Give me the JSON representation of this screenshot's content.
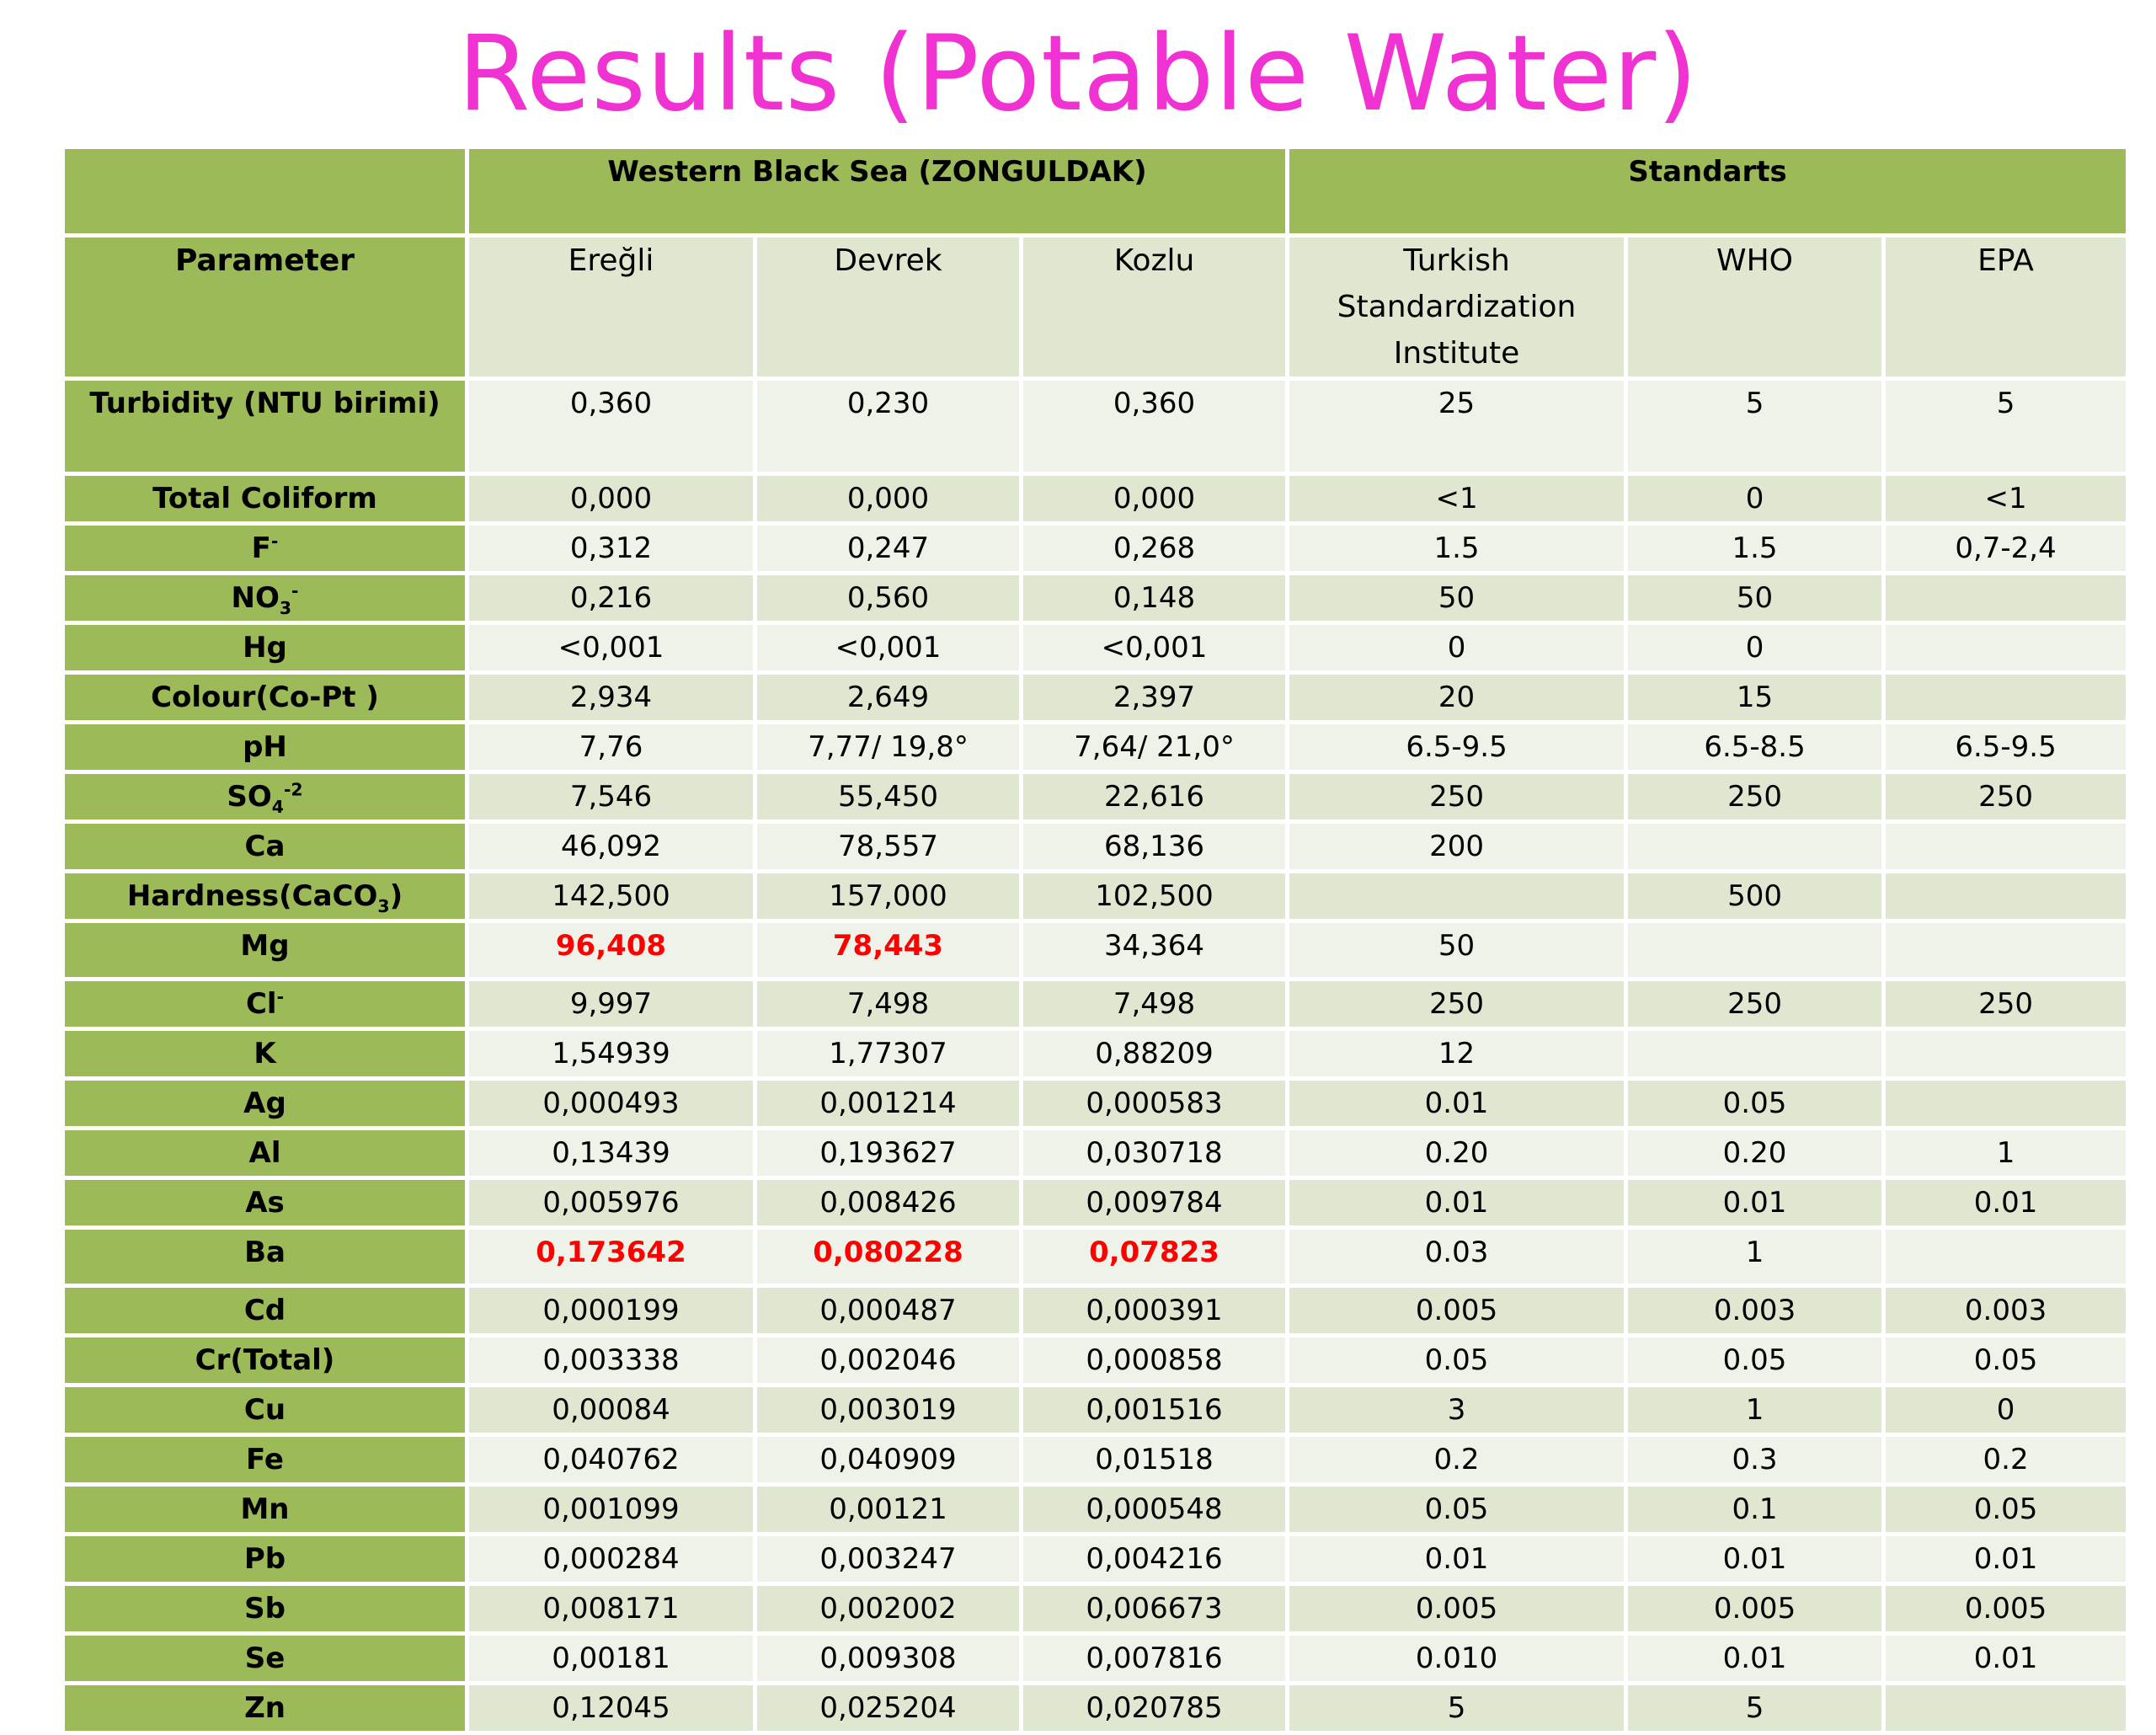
{
  "title": "Results (Potable Water)",
  "group_headers": {
    "blank": "",
    "region": "Western Black Sea (ZONGULDAK)",
    "standards": "Standarts"
  },
  "columns": {
    "parameter": "Parameter",
    "eregli": "Ereğli",
    "devrek": "Devrek",
    "kozlu": "Kozlu",
    "turkish": "Turkish Standardization Institute",
    "who": "WHO",
    "epa": "EPA"
  },
  "rows": [
    {
      "p": "Turbidity (NTU birimi)",
      "e": "0,360",
      "d": "0,230",
      "k": "0,360",
      "t": "25",
      "w": "5",
      "a": "5"
    },
    {
      "p": "Total Coliform",
      "e": "0,000",
      "d": "0,000",
      "k": "0,000",
      "t": "<1",
      "w": "0",
      "a": "<1"
    },
    {
      "p": "F",
      "sup": "-",
      "e": "0,312",
      "d": "0,247",
      "k": "0,268",
      "t": "1.5",
      "w": "1.5",
      "a": "0,7-2,4"
    },
    {
      "p": "NO",
      "sub": "3",
      "sup": "-",
      "e": "0,216",
      "d": "0,560",
      "k": "0,148",
      "t": "50",
      "w": "50",
      "a": ""
    },
    {
      "p": "Hg",
      "e": "<0,001",
      "d": "<0,001",
      "k": "<0,001",
      "t": "0",
      "w": "0",
      "a": ""
    },
    {
      "p": "Colour(Co-Pt )",
      "e": "2,934",
      "d": "2,649",
      "k": "2,397",
      "t": "20",
      "w": "15",
      "a": ""
    },
    {
      "p": "pH",
      "e": "7,76",
      "d": "7,77/ 19,8°",
      "k": "7,64/ 21,0°",
      "t": "6.5-9.5",
      "w": "6.5-8.5",
      "a": "6.5-9.5"
    },
    {
      "p": "SO",
      "sub": "4",
      "sup": "-2",
      "e": "7,546",
      "d": "55,450",
      "k": "22,616",
      "t": "250",
      "w": "250",
      "a": "250"
    },
    {
      "p": "Ca",
      "e": "46,092",
      "d": "78,557",
      "k": "68,136",
      "t": "200",
      "w": "",
      "a": ""
    },
    {
      "p": "Hardness(CaCO",
      "sub": "3",
      "post": ")",
      "e": "142,500",
      "d": "157,000",
      "k": "102,500",
      "t": "",
      "w": "500",
      "a": ""
    },
    {
      "p": "Mg",
      "e": "96,408",
      "d": "78,443",
      "k": "34,364",
      "t": "50",
      "w": "",
      "a": ""
    },
    {
      "p": "Cl",
      "sup": "-",
      "e": "9,997",
      "d": "7,498",
      "k": "7,498",
      "t": "250",
      "w": "250",
      "a": "250"
    },
    {
      "p": "K",
      "e": "1,54939",
      "d": "1,77307",
      "k": "0,88209",
      "t": "12",
      "w": "",
      "a": ""
    },
    {
      "p": "Ag",
      "e": "0,000493",
      "d": "0,001214",
      "k": "0,000583",
      "t": "0.01",
      "w": "0.05",
      "a": ""
    },
    {
      "p": "Al",
      "e": "0,13439",
      "d": "0,193627",
      "k": "0,030718",
      "t": "0.20",
      "w": "0.20",
      "a": "1"
    },
    {
      "p": "As",
      "e": "0,005976",
      "d": "0,008426",
      "k": "0,009784",
      "t": "0.01",
      "w": "0.01",
      "a": "0.01"
    },
    {
      "p": "Ba",
      "e": "0,173642",
      "d": "0,080228",
      "k": "0,07823",
      "t": "0.03",
      "w": "1",
      "a": ""
    },
    {
      "p": "Cd",
      "e": "0,000199",
      "d": "0,000487",
      "k": "0,000391",
      "t": "0.005",
      "w": "0.003",
      "a": "0.003"
    },
    {
      "p": "Cr(Total)",
      "e": "0,003338",
      "d": "0,002046",
      "k": "0,000858",
      "t": "0.05",
      "w": "0.05",
      "a": "0.05"
    },
    {
      "p": "Cu",
      "e": "0,00084",
      "d": "0,003019",
      "k": "0,001516",
      "t": "3",
      "w": "1",
      "a": "0"
    },
    {
      "p": "Fe",
      "e": "0,040762",
      "d": "0,040909",
      "k": "0,01518",
      "t": "0.2",
      "w": "0.3",
      "a": "0.2"
    },
    {
      "p": "Mn",
      "e": "0,001099",
      "d": "0,00121",
      "k": "0,000548",
      "t": "0.05",
      "w": "0.1",
      "a": "0.05"
    },
    {
      "p": "Pb",
      "e": "0,000284",
      "d": "0,003247",
      "k": "0,004216",
      "t": "0.01",
      "w": "0.01",
      "a": "0.01"
    },
    {
      "p": "Sb",
      "e": "0,008171",
      "d": "0,002002",
      "k": "0,006673",
      "t": "0.005",
      "w": "0.005",
      "a": "0.005"
    },
    {
      "p": "Se",
      "e": "0,00181",
      "d": "0,009308",
      "k": "0,007816",
      "t": "0.010",
      "w": "0.01",
      "a": "0.01"
    },
    {
      "p": "Zn",
      "e": "0,12045",
      "d": "0,025204",
      "k": "0,020785",
      "t": "5",
      "w": "5",
      "a": ""
    }
  ],
  "colors": {
    "title": "#f032d2",
    "header_green": "#9cbb58",
    "row_dark": "#dfe7d0",
    "row_light": "#eef2e8",
    "highlight": "#ff0000"
  }
}
